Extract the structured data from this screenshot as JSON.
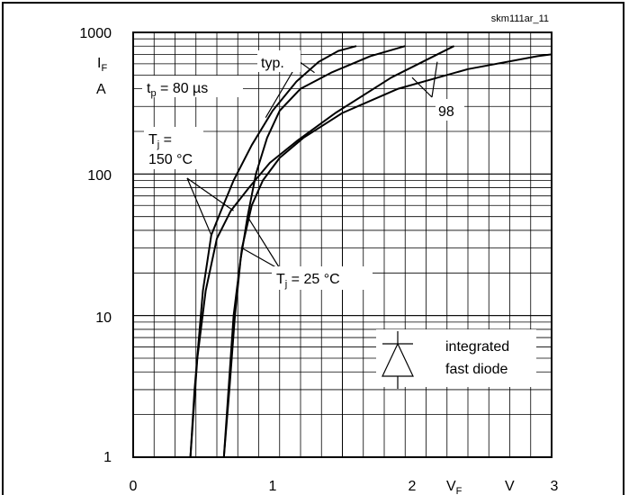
{
  "figure_id": "skm111ar_11",
  "chart_data": {
    "type": "line",
    "title": "",
    "xlabel": "VF",
    "xunit": "V",
    "ylabel": "IF",
    "yunit": "A",
    "xlim": [
      0,
      3
    ],
    "ylim": [
      1,
      1000
    ],
    "yscale": "log",
    "grid": true,
    "x_ticks": [
      "0",
      "1",
      "2",
      "3"
    ],
    "y_ticks": [
      "1",
      "10",
      "100",
      "1000"
    ],
    "series": [
      {
        "name": "typ. Tj = 150 °C",
        "x": [
          0.41,
          0.44,
          0.5,
          0.56,
          0.63,
          0.72,
          0.85,
          1.0,
          1.17,
          1.33,
          1.47,
          1.6
        ],
        "y": [
          1,
          3,
          15,
          37,
          55,
          90,
          160,
          280,
          450,
          620,
          740,
          800
        ]
      },
      {
        "name": "typ. Tj = 25 °C",
        "x": [
          0.65,
          0.69,
          0.73,
          0.77,
          0.82,
          0.88,
          0.96,
          1.05,
          1.2,
          1.42,
          1.7,
          1.95
        ],
        "y": [
          1,
          3,
          10,
          25,
          50,
          100,
          180,
          280,
          400,
          520,
          680,
          800
        ]
      },
      {
        "name": "98 Tj = 150 °C",
        "x": [
          0.41,
          0.46,
          0.52,
          0.6,
          0.7,
          0.83,
          0.98,
          1.17,
          1.45,
          1.85,
          2.3
        ],
        "y": [
          1,
          5,
          15,
          35,
          55,
          80,
          120,
          170,
          270,
          480,
          800
        ]
      },
      {
        "name": "98 Tj = 25 °C",
        "x": [
          0.65,
          0.72,
          0.78,
          0.85,
          0.93,
          1.05,
          1.22,
          1.5,
          1.9,
          2.4,
          2.9,
          3.0
        ],
        "y": [
          1,
          10,
          30,
          60,
          90,
          130,
          180,
          270,
          400,
          550,
          680,
          700
        ]
      }
    ],
    "annotations": {
      "typ": "typ.",
      "tp": "tp = 80 µs",
      "curve98": "98",
      "tj150_line1": "Tj =",
      "tj150_line2": "150 °C",
      "tj25": "Tj = 25 °C",
      "legend_line1": "integrated",
      "legend_line2": "fast diode"
    }
  }
}
